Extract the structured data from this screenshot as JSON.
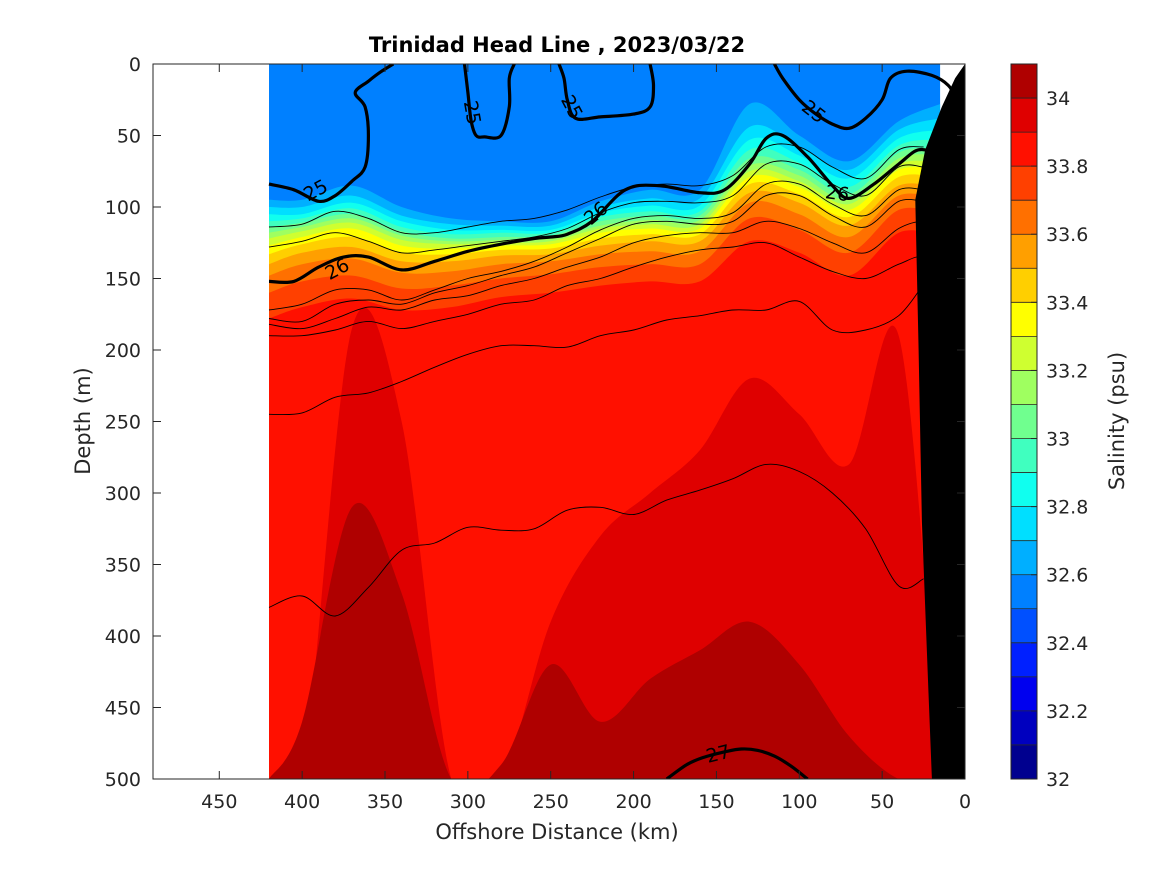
{
  "chart_data": {
    "type": "heatmap",
    "title": "Trinidad Head Line , 2023/03/22",
    "xlabel": "Offshore Distance (km)",
    "ylabel": "Depth (m)",
    "colorbar_label": "Salinity (psu)",
    "x_direction": "reversed",
    "y_direction": "reversed",
    "xlim": [
      0,
      490
    ],
    "ylim": [
      0,
      500
    ],
    "x_ticks": [
      450,
      400,
      350,
      300,
      250,
      200,
      150,
      100,
      50,
      0
    ],
    "y_ticks": [
      0,
      50,
      100,
      150,
      200,
      250,
      300,
      350,
      400,
      450,
      500
    ],
    "colorbar": {
      "range": [
        32,
        34.1
      ],
      "step": 0.1,
      "ticks": [
        32,
        32.2,
        32.4,
        32.6,
        32.8,
        33,
        33.2,
        33.4,
        33.6,
        33.8,
        34
      ],
      "tick_labels": [
        "32",
        "32.2",
        "32.4",
        "32.6",
        "32.8",
        "33",
        "33.2",
        "33.4",
        "33.6",
        "33.8",
        "34"
      ],
      "colors": [
        "#00008f",
        "#0000bf",
        "#0000ef",
        "#0020ff",
        "#0050ff",
        "#0080ff",
        "#00afff",
        "#00dfff",
        "#10ffef",
        "#40ffbf",
        "#70ff8f",
        "#9fff60",
        "#cfff30",
        "#ffff00",
        "#ffcf00",
        "#ff9f00",
        "#ff7000",
        "#ff4000",
        "#ff1000",
        "#df0000",
        "#af0000"
      ]
    },
    "stations_x_km": [
      420,
      400,
      370,
      340,
      310,
      280,
      250,
      220,
      190,
      160,
      130,
      100,
      70,
      40,
      15
    ],
    "salinity_bands": [
      {
        "min_salinity": 32.5,
        "depth_m": [
          0,
          0,
          0,
          0,
          0,
          0,
          0,
          0,
          0,
          0,
          0,
          0,
          0,
          0,
          0
        ]
      },
      {
        "min_salinity": 32.6,
        "depth_m": [
          95,
          95,
          85,
          100,
          108,
          110,
          110,
          96,
          88,
          88,
          28,
          50,
          68,
          40,
          28
        ]
      },
      {
        "min_salinity": 32.7,
        "depth_m": [
          100,
          100,
          92,
          106,
          112,
          113,
          113,
          100,
          94,
          94,
          44,
          58,
          74,
          46,
          38
        ]
      },
      {
        "min_salinity": 32.8,
        "depth_m": [
          105,
          105,
          97,
          110,
          116,
          116,
          116,
          104,
          99,
          99,
          53,
          64,
          80,
          52,
          46
        ]
      },
      {
        "min_salinity": 32.9,
        "depth_m": [
          110,
          108,
          101,
          114,
          119,
          118,
          118,
          107,
          103,
          103,
          60,
          69,
          86,
          57,
          53
        ]
      },
      {
        "min_salinity": 33.0,
        "depth_m": [
          114,
          111,
          105,
          117,
          122,
          121,
          120,
          110,
          106,
          106,
          66,
          74,
          91,
          62,
          59
        ]
      },
      {
        "min_salinity": 33.1,
        "depth_m": [
          118,
          114,
          108,
          120,
          124,
          123,
          122,
          113,
          109,
          109,
          71,
          78,
          95,
          66,
          64
        ]
      },
      {
        "min_salinity": 33.2,
        "depth_m": [
          122,
          117,
          111,
          123,
          126,
          125,
          124,
          115,
          112,
          112,
          75,
          82,
          98,
          70,
          69
        ]
      },
      {
        "min_salinity": 33.3,
        "depth_m": [
          127,
          121,
          115,
          127,
          129,
          127,
          126,
          118,
          115,
          115,
          79,
          86,
          102,
          74,
          74
        ]
      },
      {
        "min_salinity": 33.4,
        "depth_m": [
          133,
          126,
          121,
          132,
          133,
          130,
          129,
          122,
          119,
          119,
          84,
          91,
          107,
          79,
          80
        ]
      },
      {
        "min_salinity": 33.5,
        "depth_m": [
          140,
          132,
          128,
          138,
          138,
          134,
          133,
          127,
          124,
          124,
          90,
          97,
          113,
          85,
          87
        ]
      },
      {
        "min_salinity": 33.6,
        "depth_m": [
          148,
          140,
          136,
          146,
          145,
          140,
          138,
          133,
          131,
          131,
          97,
          105,
          121,
          92,
          95
        ]
      },
      {
        "min_salinity": 33.7,
        "depth_m": [
          160,
          152,
          148,
          157,
          155,
          150,
          147,
          142,
          140,
          140,
          108,
          116,
          132,
          102,
          105
        ]
      },
      {
        "min_salinity": 33.8,
        "depth_m": [
          178,
          170,
          164,
          172,
          170,
          163,
          160,
          155,
          152,
          152,
          124,
          132,
          148,
          118,
          120
        ]
      },
      {
        "min_salinity": 33.9,
        "depth_m": [
          500,
          500,
          185,
          250,
          500,
          500,
          390,
          330,
          300,
          270,
          220,
          245,
          280,
          190,
          500
        ]
      },
      {
        "min_salinity": 34.0,
        "depth_m": [
          500,
          460,
          310,
          370,
          500,
          490,
          420,
          460,
          430,
          410,
          390,
          420,
          470,
          500,
          500
        ]
      }
    ],
    "density_contours": [
      {
        "value": 25,
        "label": "25",
        "labeled": true,
        "x": [
          420,
          405,
          390,
          380,
          370,
          362,
          360,
          362,
          368,
          360,
          352,
          345
        ],
        "y": [
          84,
          88,
          96,
          92,
          82,
          72,
          50,
          30,
          20,
          12,
          5,
          0
        ]
      },
      {
        "value": 25,
        "label": "25",
        "labeled": true,
        "x": [
          302,
          300,
          298,
          295,
          290,
          280,
          275,
          275,
          272
        ],
        "y": [
          0,
          20,
          40,
          50,
          51,
          50,
          30,
          10,
          0
        ]
      },
      {
        "value": 25,
        "label": "25",
        "labeled": true,
        "x": [
          245,
          242,
          240,
          235,
          220,
          200,
          190,
          188,
          190
        ],
        "y": [
          0,
          10,
          25,
          38,
          37,
          35,
          30,
          15,
          0
        ]
      },
      {
        "value": 25,
        "label": "25",
        "labeled": true,
        "x": [
          115,
          110,
          100,
          90,
          80,
          70,
          60,
          50,
          45,
          35,
          20,
          10,
          5
        ],
        "y": [
          0,
          10,
          25,
          35,
          42,
          45,
          38,
          25,
          10,
          5,
          8,
          15,
          25
        ]
      },
      {
        "value": 26,
        "label": "26",
        "labeled": true,
        "x": [
          420,
          405,
          390,
          375,
          360,
          340,
          320,
          300,
          280,
          260,
          250,
          240,
          225,
          205,
          185,
          160,
          145,
          130,
          120,
          110,
          95,
          80,
          70,
          55,
          40,
          28,
          18,
          12
        ],
        "y": [
          152,
          152,
          142,
          135,
          135,
          144,
          138,
          131,
          126,
          122,
          121,
          119,
          110,
          88,
          85,
          90,
          88,
          70,
          52,
          50,
          65,
          85,
          94,
          84,
          70,
          60,
          65,
          84
        ]
      },
      {
        "value": 27,
        "label": "27",
        "labeled": true,
        "x": [
          180,
          168,
          158,
          145,
          135,
          125,
          115,
          105,
          95
        ],
        "y": [
          500,
          490,
          485,
          481,
          479,
          480,
          484,
          491,
          500
        ]
      }
    ],
    "thin_contours": [
      {
        "x": [
          420,
          400,
          380,
          360,
          340,
          320,
          300,
          280,
          260,
          240,
          220,
          200,
          180,
          160,
          140,
          120,
          100,
          80,
          60,
          40,
          25
        ],
        "y": [
          114,
          112,
          103,
          108,
          118,
          118,
          114,
          110,
          108,
          102,
          93,
          86,
          84,
          85,
          78,
          58,
          58,
          72,
          80,
          60,
          58
        ]
      },
      {
        "x": [
          420,
          400,
          380,
          360,
          340,
          320,
          300,
          280,
          260,
          240,
          220,
          200,
          180,
          160,
          140,
          120,
          100,
          80,
          60,
          40,
          25
        ],
        "y": [
          128,
          124,
          118,
          124,
          132,
          130,
          127,
          124,
          121,
          115,
          104,
          97,
          96,
          97,
          92,
          70,
          70,
          84,
          92,
          72,
          72
        ]
      },
      {
        "x": [
          420,
          400,
          380,
          360,
          340,
          320,
          300,
          280,
          260,
          240,
          220,
          200,
          180,
          160,
          140,
          120,
          100,
          80,
          60,
          40,
          25
        ],
        "y": [
          172,
          168,
          158,
          158,
          165,
          158,
          150,
          145,
          138,
          128,
          116,
          108,
          106,
          108,
          104,
          84,
          84,
          98,
          106,
          88,
          88
        ]
      },
      {
        "x": [
          420,
          400,
          380,
          360,
          340,
          320,
          300,
          280,
          260,
          240,
          220,
          200,
          180,
          160,
          140,
          120,
          100,
          80,
          60,
          40,
          25
        ],
        "y": [
          178,
          180,
          168,
          165,
          168,
          160,
          155,
          148,
          142,
          132,
          122,
          112,
          110,
          112,
          110,
          92,
          92,
          106,
          114,
          96,
          96
        ]
      },
      {
        "x": [
          420,
          400,
          380,
          360,
          340,
          320,
          300,
          280,
          260,
          240,
          220,
          200,
          180,
          160,
          140,
          120,
          100,
          80,
          60,
          40,
          25,
          15
        ],
        "y": [
          182,
          185,
          178,
          170,
          172,
          165,
          162,
          155,
          150,
          142,
          135,
          125,
          120,
          118,
          118,
          110,
          115,
          125,
          132,
          115,
          110,
          115
        ]
      },
      {
        "x": [
          420,
          400,
          380,
          360,
          340,
          320,
          300,
          280,
          260,
          240,
          220,
          200,
          180,
          160,
          140,
          120,
          100,
          80,
          60,
          40,
          25,
          15
        ],
        "y": [
          190,
          190,
          186,
          180,
          185,
          180,
          175,
          168,
          165,
          155,
          150,
          142,
          135,
          130,
          128,
          125,
          135,
          145,
          150,
          140,
          135,
          150
        ]
      },
      {
        "x": [
          420,
          400,
          380,
          360,
          340,
          320,
          300,
          280,
          260,
          240,
          220,
          200,
          180,
          160,
          140,
          120,
          100,
          80,
          60,
          40,
          25
        ],
        "y": [
          245,
          244,
          233,
          230,
          222,
          212,
          203,
          197,
          197,
          198,
          190,
          186,
          179,
          176,
          172,
          172,
          166,
          186,
          186,
          176,
          154
        ]
      },
      {
        "x": [
          420,
          400,
          380,
          360,
          340,
          320,
          300,
          280,
          260,
          240,
          220,
          200,
          180,
          160,
          140,
          120,
          100,
          80,
          60,
          40,
          25
        ],
        "y": [
          380,
          372,
          386,
          366,
          340,
          335,
          324,
          326,
          325,
          312,
          310,
          315,
          305,
          298,
          290,
          280,
          285,
          300,
          325,
          365,
          360
        ]
      }
    ],
    "seafloor_mask": {
      "x": [
        20,
        22,
        26,
        28,
        30,
        24,
        14,
        6,
        0
      ],
      "y": [
        500,
        440,
        320,
        200,
        95,
        60,
        30,
        10,
        0
      ]
    }
  }
}
